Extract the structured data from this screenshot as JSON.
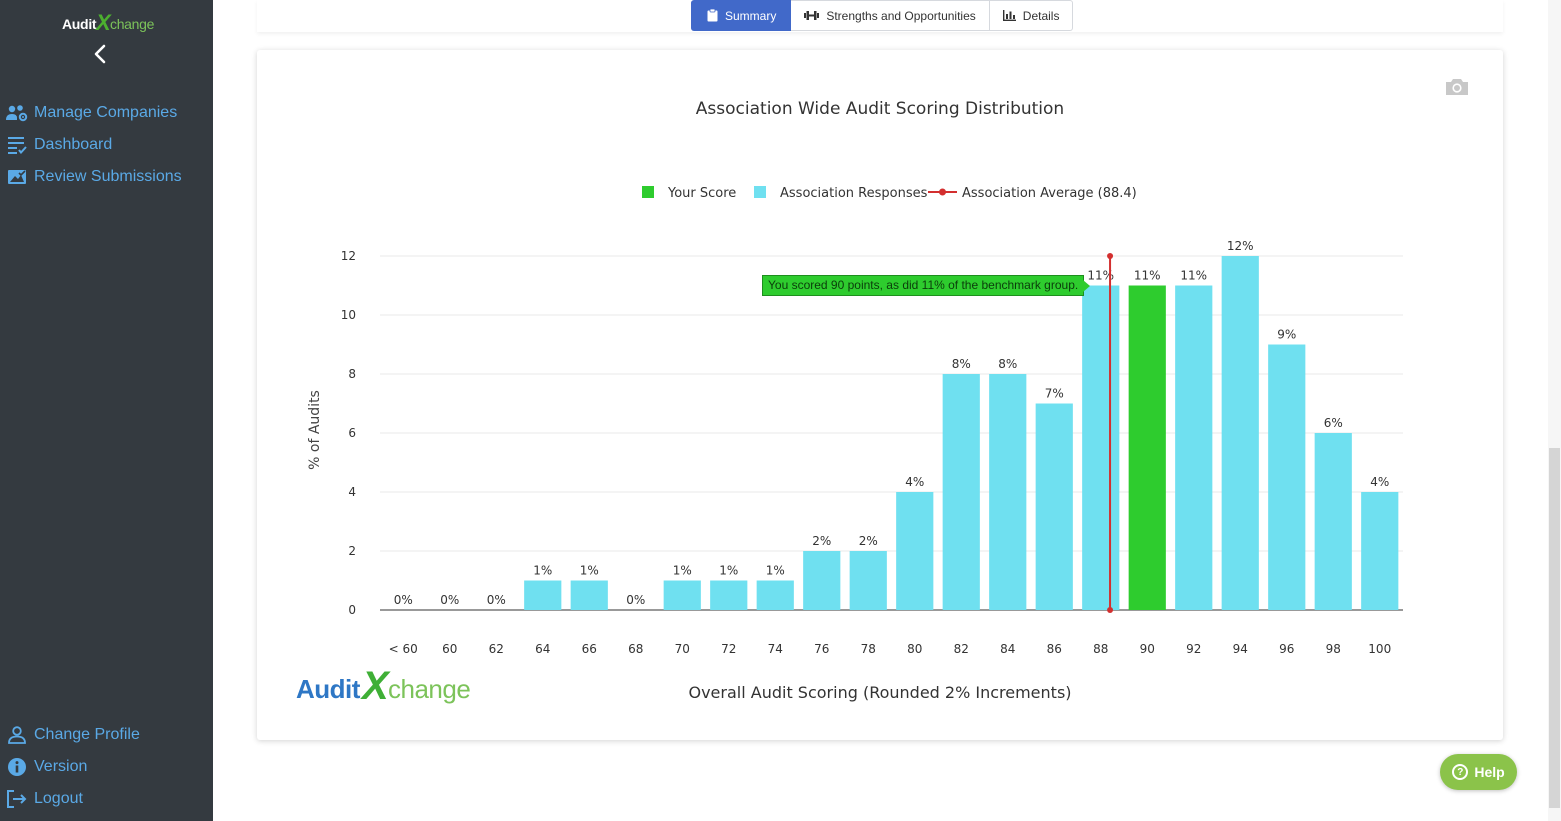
{
  "sidebar": {
    "logo": {
      "part1": "Audit",
      "part_x": "X",
      "part2": "change"
    },
    "collapse_icon": "chevron-left-icon",
    "items": [
      {
        "label": "Manage Companies",
        "icon": "users-gear-icon"
      },
      {
        "label": "Dashboard",
        "icon": "list-check-icon"
      },
      {
        "label": "Review Submissions",
        "icon": "image-check-icon"
      }
    ],
    "bottom_items": [
      {
        "label": "Change Profile",
        "icon": "user-icon"
      },
      {
        "label": "Version",
        "icon": "info-icon"
      },
      {
        "label": "Logout",
        "icon": "logout-icon"
      }
    ]
  },
  "tabs": [
    {
      "label": "Summary",
      "icon": "clipboard-icon",
      "active": true
    },
    {
      "label": "Strengths and Opportunities",
      "icon": "dumbbell-icon",
      "active": false
    },
    {
      "label": "Details",
      "icon": "bar-chart-icon",
      "active": false
    }
  ],
  "chart_data": {
    "type": "bar",
    "title": "Association Wide Audit Scoring Distribution",
    "xlabel": "Overall Audit Scoring (Rounded 2% Increments)",
    "ylabel": "% of Audits",
    "categories": [
      "< 60",
      "60",
      "62",
      "64",
      "66",
      "68",
      "70",
      "72",
      "74",
      "76",
      "78",
      "80",
      "82",
      "84",
      "86",
      "88",
      "90",
      "92",
      "94",
      "96",
      "98",
      "100"
    ],
    "values": [
      0,
      0,
      0,
      1,
      1,
      0,
      1,
      1,
      1,
      2,
      2,
      4,
      8,
      8,
      7,
      11,
      11,
      11,
      12,
      9,
      6,
      4
    ],
    "data_labels": [
      "0%",
      "0%",
      "0%",
      "1%",
      "1%",
      "0%",
      "1%",
      "1%",
      "1%",
      "2%",
      "2%",
      "4%",
      "8%",
      "8%",
      "7%",
      "11%",
      "11%",
      "11%",
      "12%",
      "9%",
      "6%",
      "4%"
    ],
    "highlight_category": "90",
    "ylim": [
      0,
      12
    ],
    "yticks": [
      0,
      2,
      4,
      6,
      8,
      10,
      12
    ],
    "grid": true,
    "average": 88.4,
    "legend": {
      "placement": "top-center",
      "items": [
        {
          "label": "Your Score",
          "color": "#2ecc2e"
        },
        {
          "label": "Association Responses",
          "color": "#6fe0f0"
        },
        {
          "label": "Association Average (88.4)",
          "color": "#d32f2f"
        }
      ]
    },
    "tooltip": "You scored 90 points, as did 11% of the benchmark group."
  },
  "brand": {
    "part1": "Audit",
    "part_x": "X",
    "part2": "change"
  },
  "help": {
    "label": "Help",
    "icon_text": "?"
  },
  "camera_icon": "camera-icon",
  "colors": {
    "sidebar": "#343a40",
    "link": "#5aa9e6",
    "tab_active": "#4169c9",
    "bar": "#6fe0f0",
    "highlight": "#2ecc2e",
    "average": "#d32f2f",
    "help": "#8bc34a"
  }
}
